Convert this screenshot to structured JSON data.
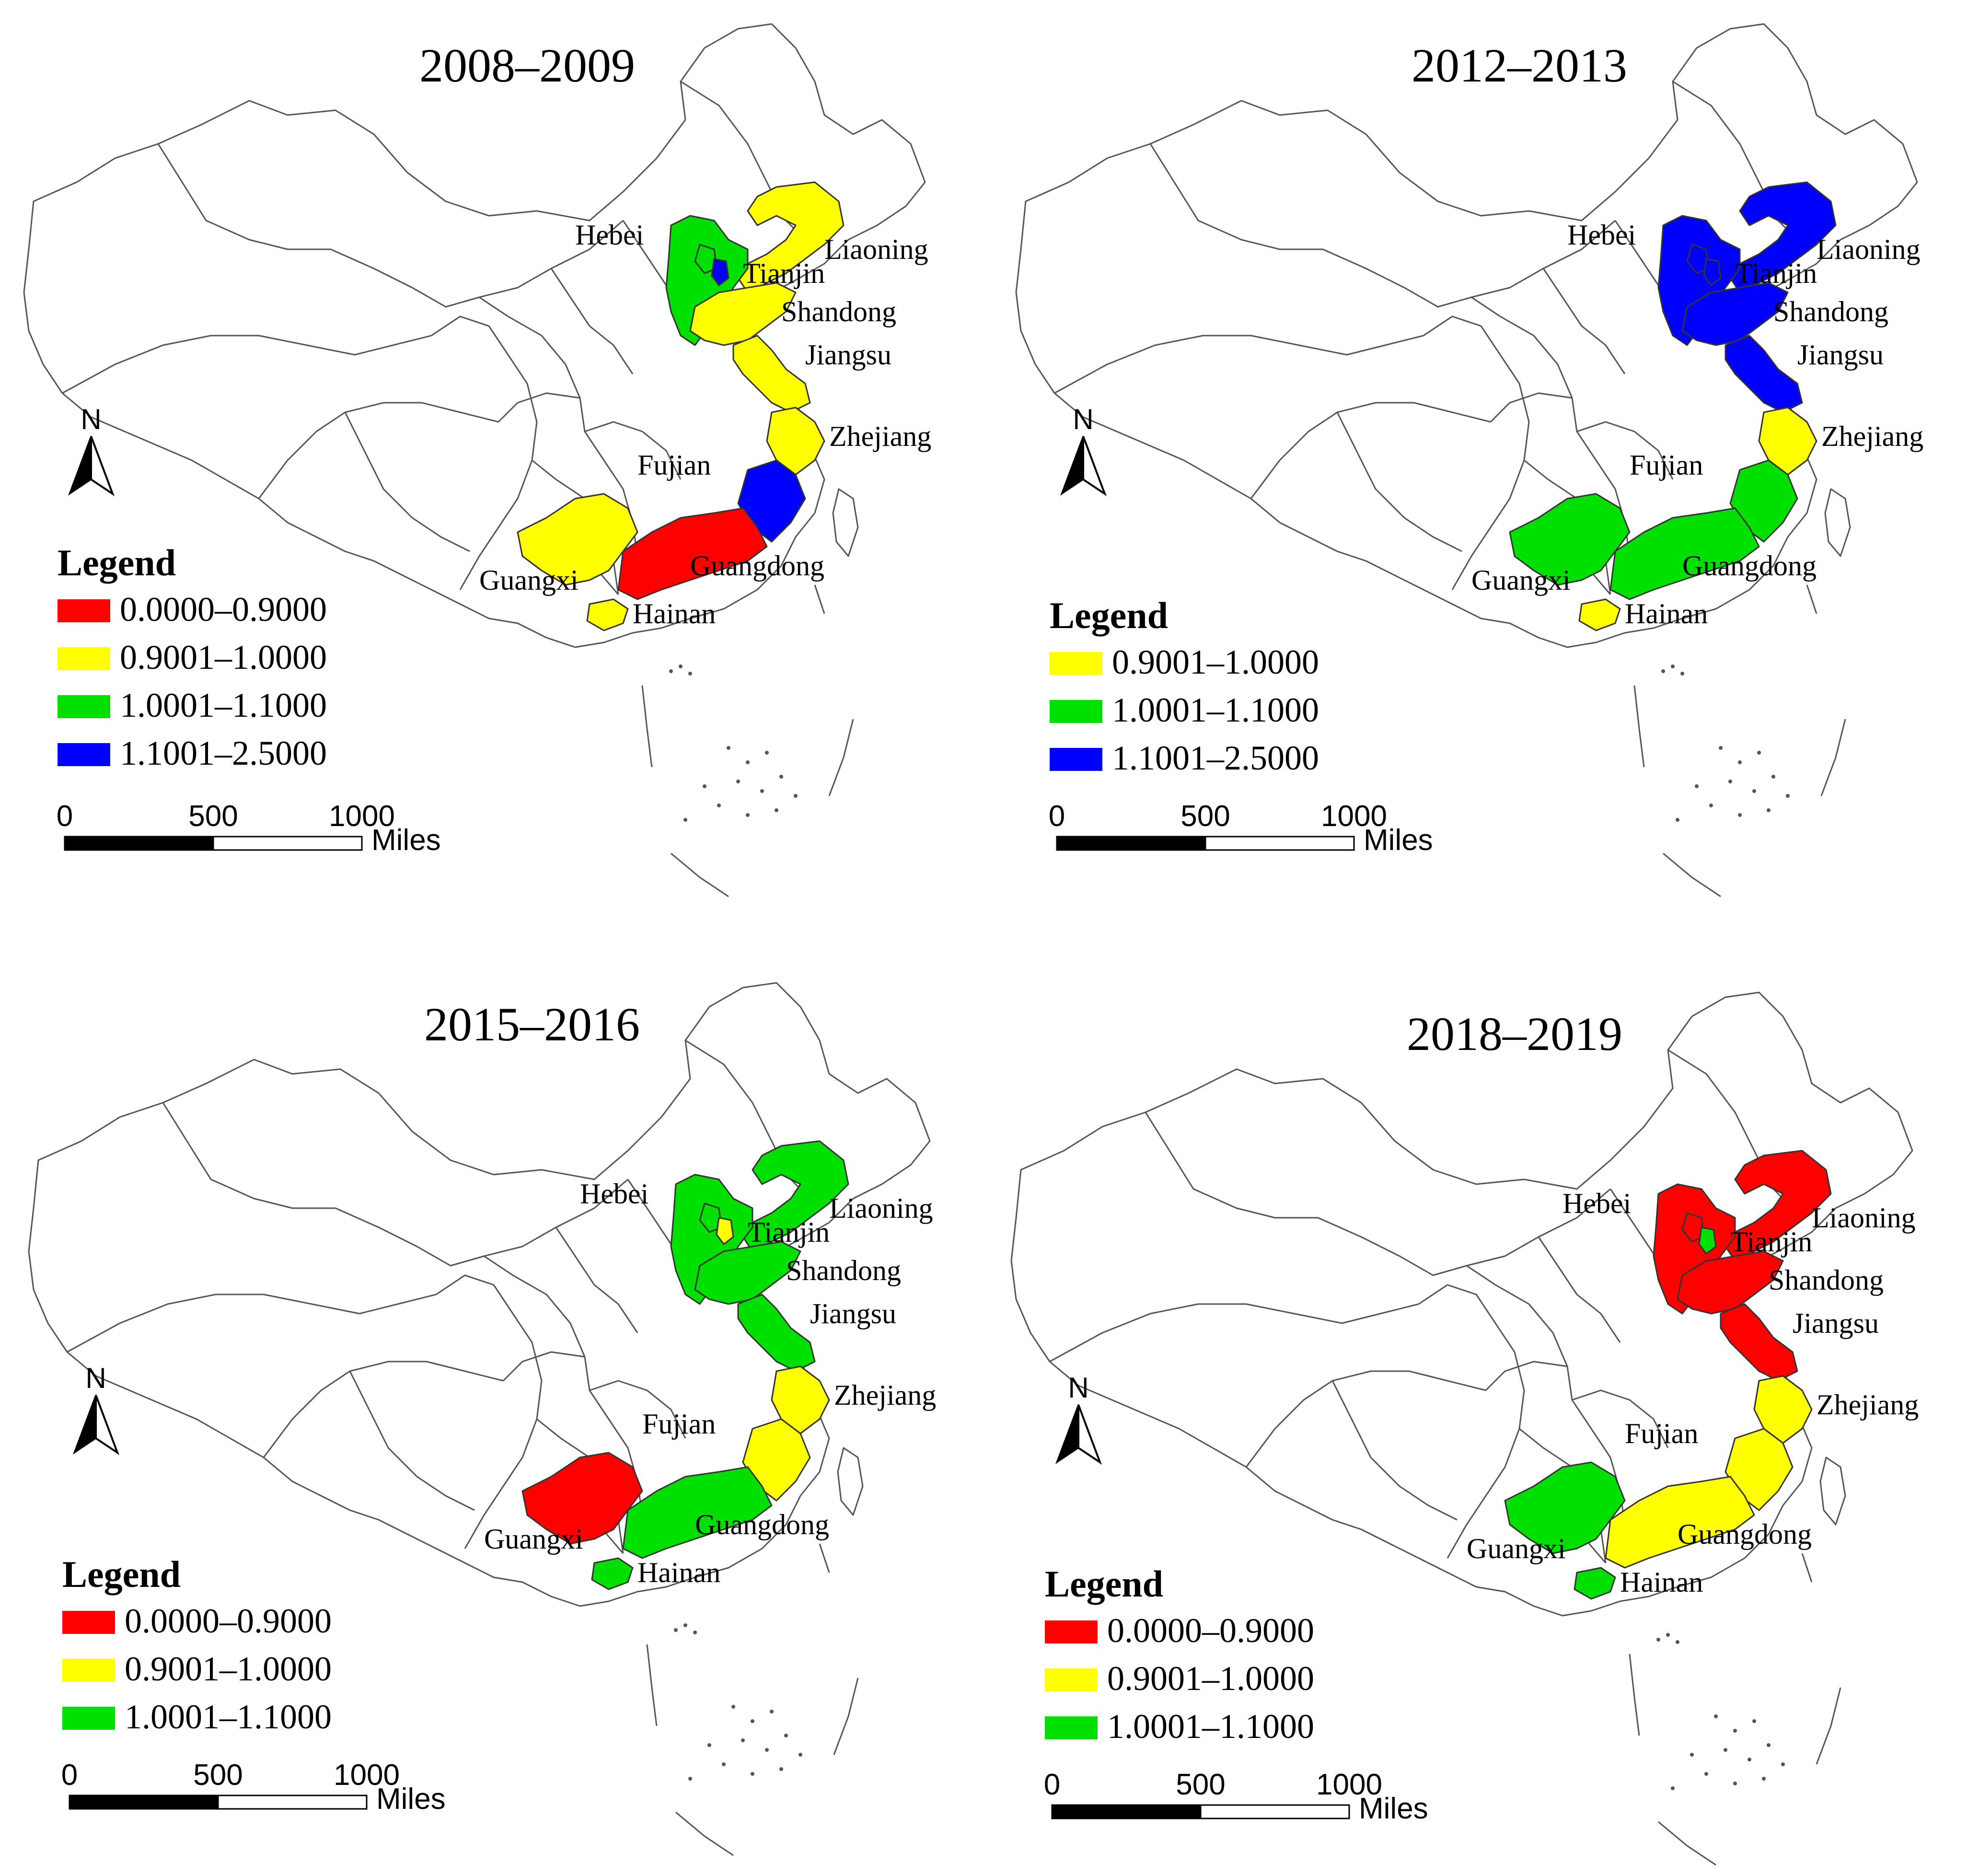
{
  "colors": {
    "red": "#ff0000",
    "yellow": "#ffff00",
    "green": "#00e000",
    "blue": "#0000ff"
  },
  "panels": [
    {
      "title": "2008–2009",
      "provinces": {
        "Hebei": "green",
        "Tianjin": "blue",
        "Liaoning": "yellow",
        "Shandong": "yellow",
        "Jiangsu": "yellow",
        "Zhejiang": "yellow",
        "Fujian": "blue",
        "Guangdong": "red",
        "Guangxi": "yellow",
        "Hainan": "yellow"
      },
      "legend": {
        "title": "Legend",
        "items": [
          {
            "label": "0.0000–0.9000",
            "color": "red"
          },
          {
            "label": "0.9001–1.0000",
            "color": "yellow"
          },
          {
            "label": "1.0001–1.1000",
            "color": "green"
          },
          {
            "label": "1.1001–2.5000",
            "color": "blue"
          }
        ]
      }
    },
    {
      "title": "2012–2013",
      "provinces": {
        "Hebei": "blue",
        "Tianjin": "blue",
        "Liaoning": "blue",
        "Shandong": "blue",
        "Jiangsu": "blue",
        "Zhejiang": "yellow",
        "Fujian": "green",
        "Guangdong": "green",
        "Guangxi": "green",
        "Hainan": "yellow"
      },
      "legend": {
        "title": "Legend",
        "items": [
          {
            "label": "0.9001–1.0000",
            "color": "yellow"
          },
          {
            "label": "1.0001–1.1000",
            "color": "green"
          },
          {
            "label": "1.1001–2.5000",
            "color": "blue"
          }
        ]
      }
    },
    {
      "title": "2015–2016",
      "provinces": {
        "Hebei": "green",
        "Tianjin": "yellow",
        "Liaoning": "green",
        "Shandong": "green",
        "Jiangsu": "green",
        "Zhejiang": "yellow",
        "Fujian": "yellow",
        "Guangdong": "green",
        "Guangxi": "red",
        "Hainan": "green"
      },
      "legend": {
        "title": "Legend",
        "items": [
          {
            "label": "0.0000–0.9000",
            "color": "red"
          },
          {
            "label": "0.9001–1.0000",
            "color": "yellow"
          },
          {
            "label": "1.0001–1.1000",
            "color": "green"
          }
        ]
      }
    },
    {
      "title": "2018–2019",
      "provinces": {
        "Hebei": "red",
        "Tianjin": "green",
        "Liaoning": "red",
        "Shandong": "red",
        "Jiangsu": "red",
        "Zhejiang": "yellow",
        "Fujian": "yellow",
        "Guangdong": "yellow",
        "Guangxi": "green",
        "Hainan": "green"
      },
      "legend": {
        "title": "Legend",
        "items": [
          {
            "label": "0.0000–0.9000",
            "color": "red"
          },
          {
            "label": "0.9001–1.0000",
            "color": "yellow"
          },
          {
            "label": "1.0001–1.1000",
            "color": "green"
          }
        ]
      }
    }
  ],
  "scale_bar": {
    "ticks": [
      "0",
      "500",
      "1000"
    ],
    "unit": "Miles"
  },
  "north_label": "N"
}
